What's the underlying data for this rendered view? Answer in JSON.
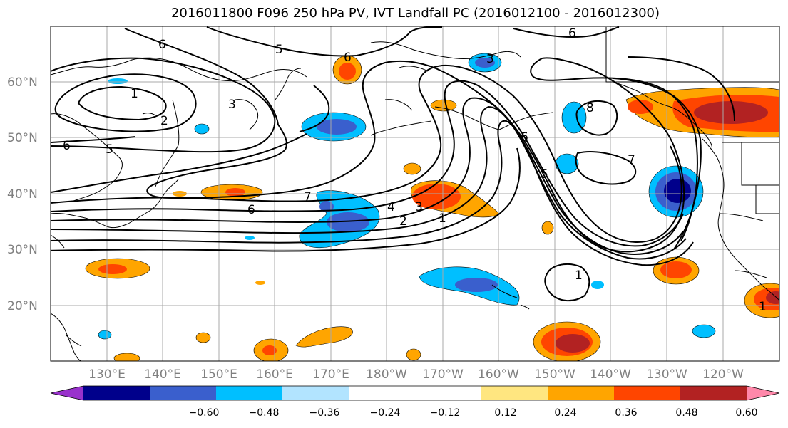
{
  "title": "2016011800 F096 250 hPa PV, IVT Landfall PC (2016012100 - 2016012300)",
  "map": {
    "lon_labels": [
      "130°E",
      "140°E",
      "150°E",
      "160°E",
      "170°E",
      "180°W",
      "170°W",
      "160°W",
      "150°W",
      "140°W",
      "130°W",
      "120°W"
    ],
    "lat_labels": [
      "60°N",
      "50°N",
      "40°N",
      "30°N",
      "20°N"
    ],
    "contour_labels": [
      "1",
      "2",
      "3",
      "6",
      "5",
      "6",
      "5",
      "6",
      "3",
      "6",
      "8",
      "6",
      "5",
      "7",
      "7",
      "6",
      "4",
      "3",
      "2",
      "1",
      "1",
      "1"
    ]
  },
  "colorbar": {
    "colors": [
      "#9932cc",
      "#00008b",
      "#3a5fcd",
      "#00bfff",
      "#b2e4ff",
      "#ffffff",
      "#ffffff",
      "#ffe680",
      "#ffa500",
      "#ff4500",
      "#b22222",
      "#ff88aa"
    ],
    "tick_labels": [
      "−0.60",
      "−0.48",
      "−0.36",
      "−0.24",
      "−0.12",
      "0.12",
      "0.24",
      "0.36",
      "0.48",
      "0.60"
    ]
  }
}
